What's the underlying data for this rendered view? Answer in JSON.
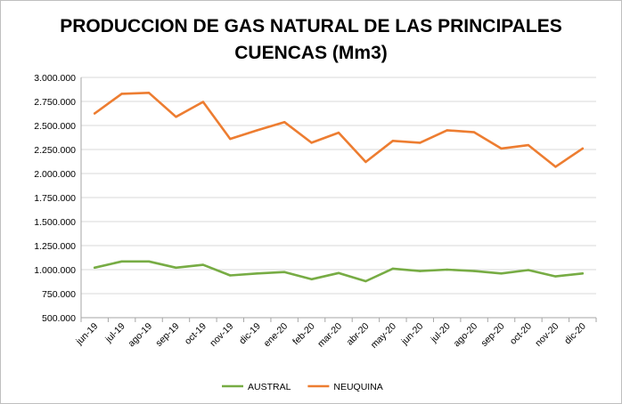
{
  "chart_data": {
    "type": "line",
    "title_line1": "PRODUCCION DE GAS NATURAL DE LAS PRINCIPALES",
    "title_line2": "CUENCAS (Mm3)",
    "categories": [
      "jun-19",
      "jul-19",
      "ago-19",
      "sep-19",
      "oct-19",
      "nov-19",
      "dic-19",
      "ene-20",
      "feb-20",
      "mar-20",
      "abr-20",
      "may-20",
      "jun-20",
      "jul-20",
      "ago-20",
      "sep-20",
      "oct-20",
      "nov-20",
      "dic-20"
    ],
    "series": [
      {
        "name": "AUSTRAL",
        "color": "#77ac44",
        "values": [
          1020000,
          1085000,
          1085000,
          1020000,
          1050000,
          940000,
          960000,
          975000,
          900000,
          965000,
          880000,
          1010000,
          985000,
          1000000,
          985000,
          960000,
          995000,
          930000,
          960000
        ]
      },
      {
        "name": "NEUQUINA",
        "color": "#ed7d31",
        "values": [
          2625000,
          2830000,
          2840000,
          2590000,
          2745000,
          2360000,
          2450000,
          2535000,
          2320000,
          2425000,
          2120000,
          2340000,
          2320000,
          2450000,
          2430000,
          2260000,
          2295000,
          2070000,
          2260000
        ]
      }
    ],
    "yticks": [
      "500.000",
      "750.000",
      "1.000.000",
      "1.250.000",
      "1.500.000",
      "1.750.000",
      "2.000.000",
      "2.250.000",
      "2.500.000",
      "2.750.000",
      "3.000.000"
    ],
    "ylim": [
      500000,
      3000000
    ],
    "grid": true,
    "legend_position": "bottom"
  }
}
